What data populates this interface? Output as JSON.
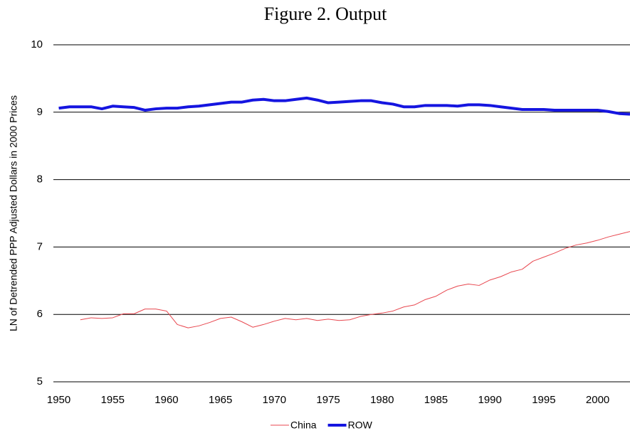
{
  "chart_data": {
    "type": "line",
    "title": "Figure 2. Output",
    "y_label": "LN of Detrended PPP Adjusted Dollars in 2000 Prices",
    "x": [
      1950,
      1951,
      1952,
      1953,
      1954,
      1955,
      1956,
      1957,
      1958,
      1959,
      1960,
      1961,
      1962,
      1963,
      1964,
      1965,
      1966,
      1967,
      1968,
      1969,
      1970,
      1971,
      1972,
      1973,
      1974,
      1975,
      1976,
      1977,
      1978,
      1979,
      1980,
      1981,
      1982,
      1983,
      1984,
      1985,
      1986,
      1987,
      1988,
      1989,
      1990,
      1991,
      1992,
      1993,
      1994,
      1995,
      1996,
      1997,
      1998,
      1999,
      2000,
      2001,
      2002,
      2003
    ],
    "series": [
      {
        "name": "China",
        "color": "#e8474f",
        "width": 1,
        "values": [
          null,
          null,
          5.92,
          5.95,
          5.94,
          5.95,
          6.01,
          6.01,
          6.08,
          6.08,
          6.05,
          5.85,
          5.8,
          5.83,
          5.88,
          5.94,
          5.96,
          5.89,
          5.81,
          5.85,
          5.9,
          5.94,
          5.92,
          5.94,
          5.91,
          5.93,
          5.91,
          5.92,
          5.97,
          6.0,
          6.02,
          6.05,
          6.11,
          6.14,
          6.22,
          6.27,
          6.36,
          6.42,
          6.45,
          6.43,
          6.51,
          6.56,
          6.63,
          6.67,
          6.79,
          6.85,
          6.91,
          6.98,
          7.03,
          7.06,
          7.1,
          7.15,
          7.19,
          7.23
        ]
      },
      {
        "name": "ROW",
        "color": "#1515e0",
        "width": 4,
        "values": [
          9.06,
          9.08,
          9.08,
          9.08,
          9.05,
          9.09,
          9.08,
          9.07,
          9.03,
          9.05,
          9.06,
          9.06,
          9.08,
          9.09,
          9.11,
          9.13,
          9.15,
          9.15,
          9.18,
          9.19,
          9.17,
          9.17,
          9.19,
          9.21,
          9.18,
          9.14,
          9.15,
          9.16,
          9.17,
          9.17,
          9.14,
          9.12,
          9.08,
          9.08,
          9.1,
          9.1,
          9.1,
          9.09,
          9.11,
          9.11,
          9.1,
          9.08,
          9.06,
          9.04,
          9.04,
          9.04,
          9.03,
          9.03,
          9.03,
          9.03,
          9.03,
          9.01,
          8.98,
          8.97
        ]
      }
    ],
    "xlim": [
      1949.5,
      2003
    ],
    "xticks": [
      1950,
      1955,
      1960,
      1965,
      1970,
      1975,
      1980,
      1985,
      1990,
      1995,
      2000
    ],
    "ylim": [
      5,
      10
    ],
    "yticks": [
      5,
      6,
      7,
      8,
      9,
      10
    ],
    "grid": true,
    "legend": "bottom"
  }
}
